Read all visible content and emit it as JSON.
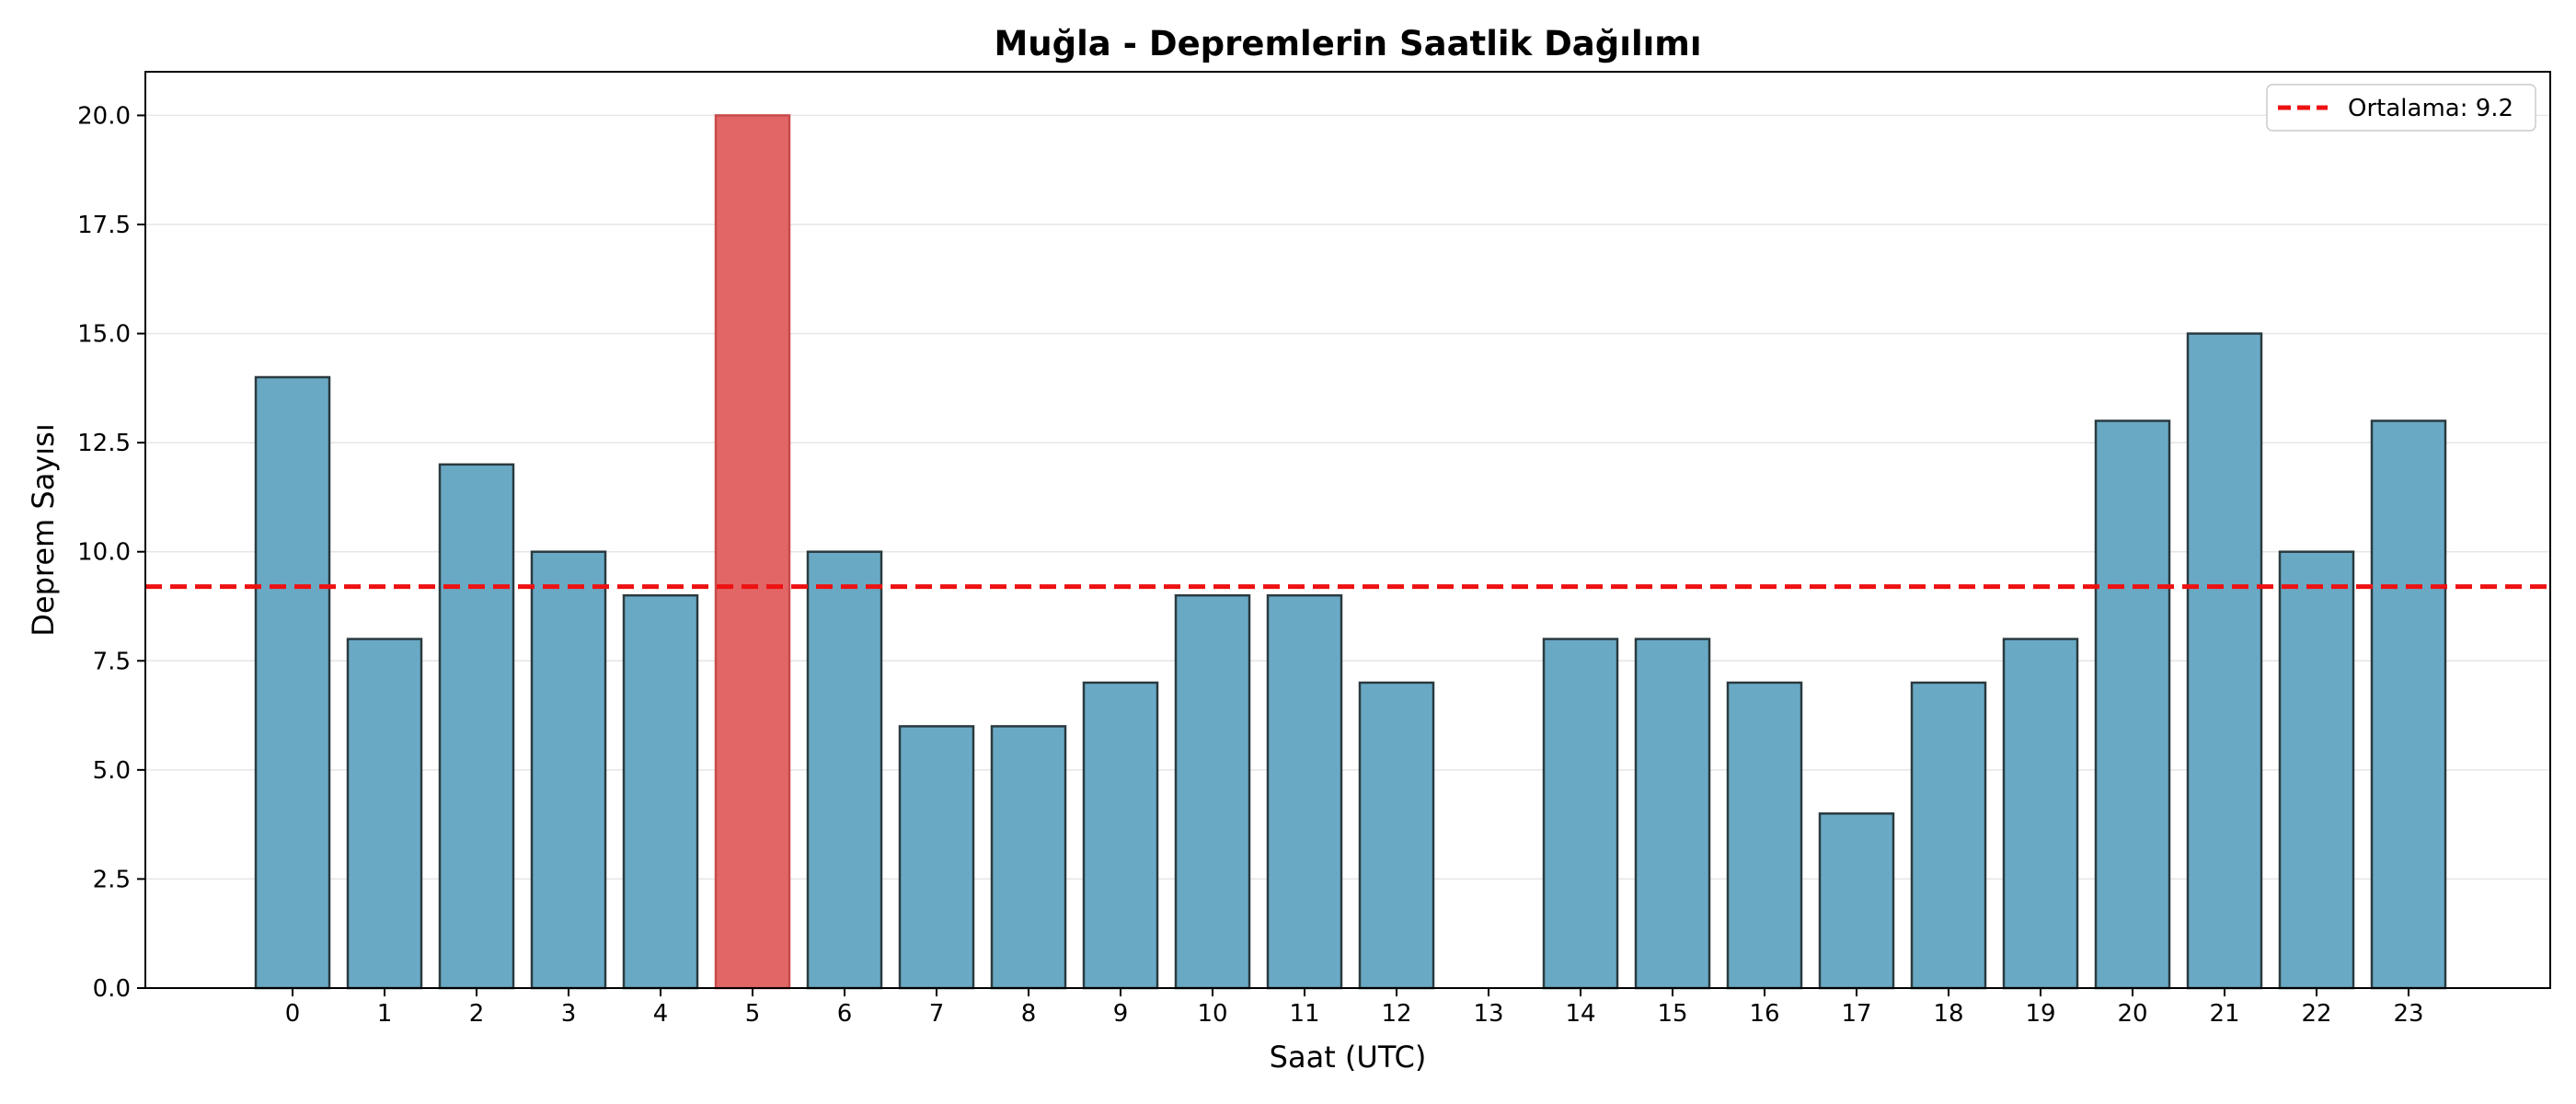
{
  "chart_data": {
    "type": "bar",
    "title": "Muğla - Depremlerin Saatlik Dağılımı",
    "xlabel": "Saat (UTC)",
    "ylabel": "Deprem Sayısı",
    "ylim": [
      0,
      21
    ],
    "yticks": [
      "0.0",
      "2.5",
      "5.0",
      "7.5",
      "10.0",
      "12.5",
      "15.0",
      "17.5",
      "20.0"
    ],
    "categories": [
      "0",
      "1",
      "2",
      "3",
      "4",
      "5",
      "6",
      "7",
      "8",
      "9",
      "10",
      "11",
      "12",
      "13",
      "14",
      "15",
      "16",
      "17",
      "18",
      "19",
      "20",
      "21",
      "22",
      "23"
    ],
    "values": [
      14,
      8,
      12,
      10,
      9,
      20,
      10,
      6,
      6,
      7,
      9,
      9,
      7,
      0,
      8,
      8,
      7,
      4,
      7,
      8,
      13,
      15,
      10,
      13
    ],
    "highlight_index": 5,
    "mean": 9.2,
    "legend": {
      "label": "Ortalama: 9.2",
      "placement": "top-right"
    },
    "grid": "horizontal",
    "colors": {
      "bar": "#6aa9c4",
      "highlight": "#e36666",
      "mean_line": "#ee1111",
      "edge": "#2b3a40"
    }
  }
}
